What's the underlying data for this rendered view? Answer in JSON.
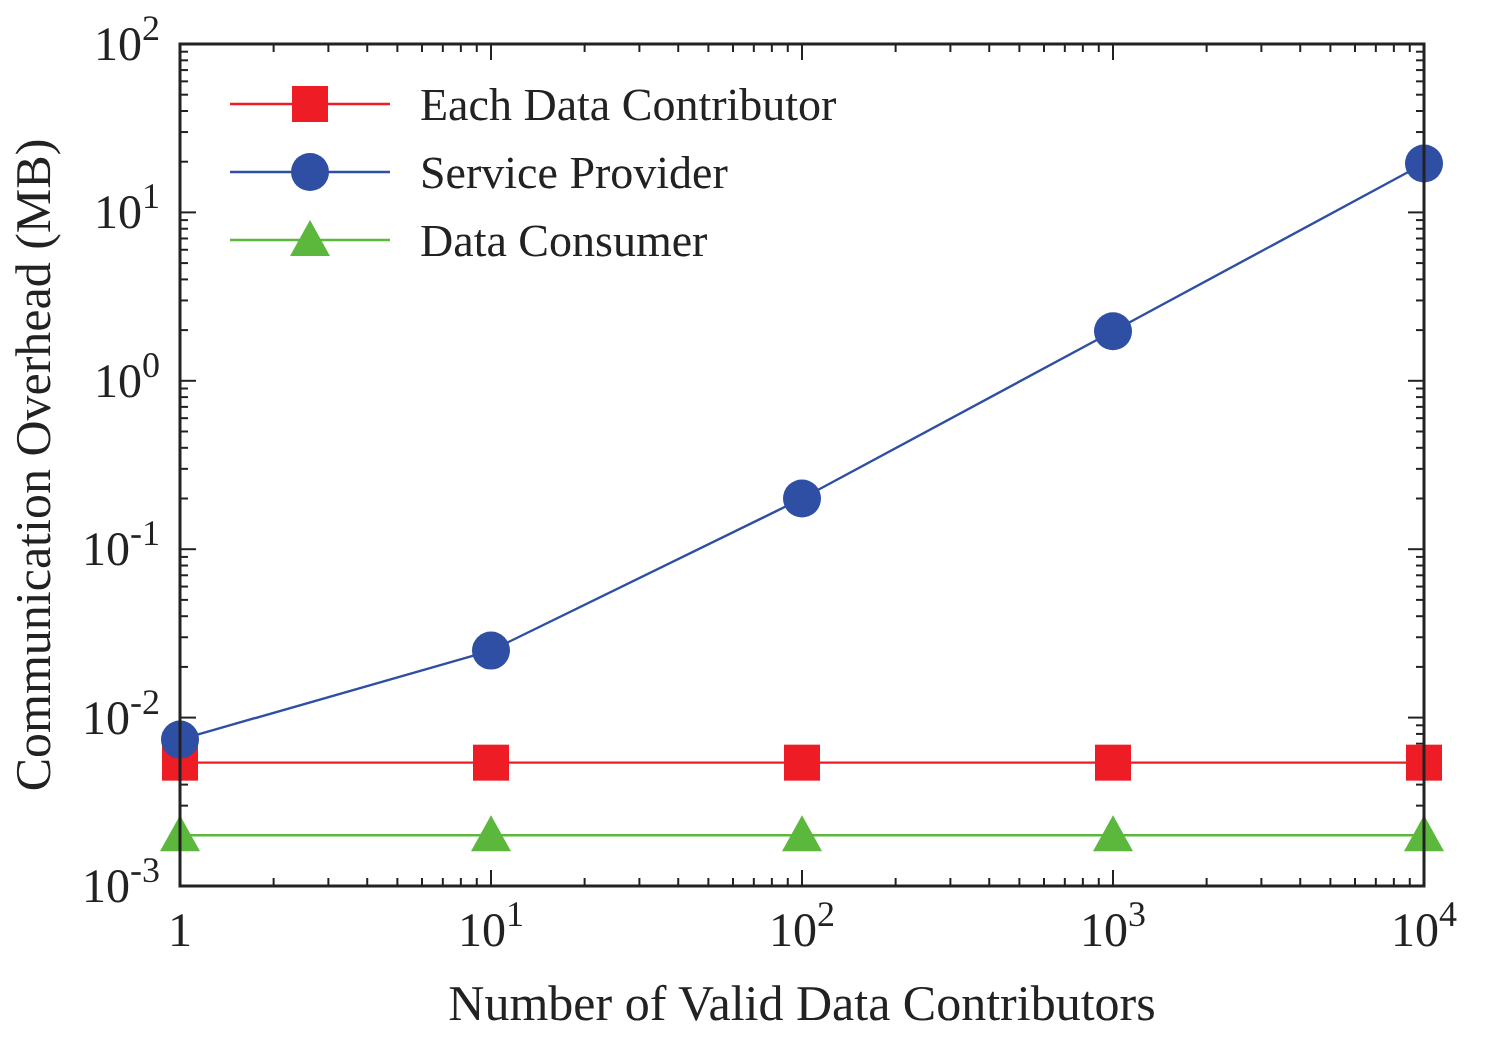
{
  "chart_data": {
    "type": "line",
    "xlabel": "Number of Valid Data Contributors",
    "ylabel": "Communication Overhead (MB)",
    "log": "xy",
    "x": [
      1,
      10,
      100,
      1000,
      10000
    ],
    "xlim": [
      1,
      10000
    ],
    "xticks": [
      1,
      {
        "value": 10,
        "label": "10$^{1}$"
      },
      {
        "value": 100,
        "label": "10$^{2}$"
      },
      {
        "value": 1000,
        "label": "10$^{3}$"
      },
      {
        "value": 10000,
        "label": "10$^{4}$"
      }
    ],
    "ylim": [
      0.001,
      100
    ],
    "yticks": [
      {
        "value": 0.001,
        "label": "10$^{-3}$"
      },
      {
        "value": 0.01,
        "label": "10$^{-2}$"
      },
      {
        "value": 0.1,
        "label": "10$^{-1}$"
      },
      {
        "value": 1,
        "label": "10$^{0}$"
      },
      {
        "value": 10,
        "label": "10$^{1}$"
      },
      {
        "value": 100,
        "label": "10$^{2}$"
      }
    ],
    "legend": "top left",
    "grid": false,
    "series": [
      {
        "name": "Each Data Contributor",
        "color": "#ee1c25",
        "marker": "square",
        "values": [
          0.0054,
          0.0054,
          0.0054,
          0.0054,
          0.0054
        ]
      },
      {
        "name": "Service Provider",
        "color": "#2e4fa3",
        "marker": "circle",
        "values": [
          0.0074,
          0.025,
          0.2,
          1.97,
          19.5
        ]
      },
      {
        "name": "Data Consumer",
        "color": "#5cb83c",
        "marker": "triangle",
        "values": [
          0.002,
          0.002,
          0.002,
          0.002,
          0.002
        ]
      }
    ]
  }
}
